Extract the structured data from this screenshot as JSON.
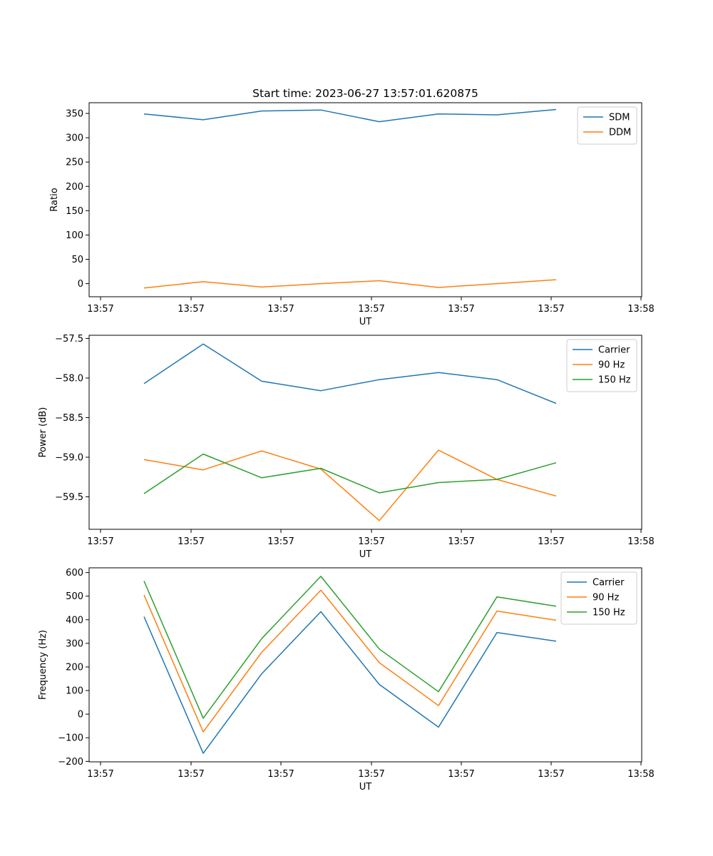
{
  "chart_data": [
    {
      "type": "line",
      "title": "Start time: 2023-06-27 13:57:01.620875",
      "xlabel": "UT",
      "ylabel": "Ratio",
      "x_tick_labels": [
        "13:57",
        "13:57",
        "13:57",
        "13:57",
        "13:57",
        "13:57",
        "13:58"
      ],
      "y_ticks": [
        0,
        50,
        100,
        150,
        200,
        250,
        300,
        350
      ],
      "ylim": [
        -27,
        372
      ],
      "legend_position": "top-right",
      "series": [
        {
          "name": "SDM",
          "color": "#1f77b4",
          "values": [
            349,
            337,
            355,
            357,
            333,
            349,
            347,
            358
          ]
        },
        {
          "name": "DDM",
          "color": "#ff7f0e",
          "values": [
            -9,
            4,
            -7,
            0,
            6,
            -8,
            0,
            8
          ]
        }
      ]
    },
    {
      "type": "line",
      "title": "",
      "xlabel": "UT",
      "ylabel": "Power (dB)",
      "x_tick_labels": [
        "13:57",
        "13:57",
        "13:57",
        "13:57",
        "13:57",
        "13:57",
        "13:58"
      ],
      "y_ticks": [
        -59.5,
        -59.0,
        -58.5,
        -58.0,
        -57.5
      ],
      "y_tick_labels": [
        "−59.5",
        "−59.0",
        "−58.5",
        "−58.0",
        "−57.5"
      ],
      "ylim": [
        -59.91,
        -57.46
      ],
      "legend_position": "top-right",
      "series": [
        {
          "name": "Carrier",
          "color": "#1f77b4",
          "values": [
            -58.07,
            -57.57,
            -58.04,
            -58.16,
            -58.02,
            -57.93,
            -58.02,
            -58.32
          ]
        },
        {
          "name": "90 Hz",
          "color": "#ff7f0e",
          "values": [
            -59.03,
            -59.16,
            -58.92,
            -59.15,
            -59.8,
            -58.91,
            -59.28,
            -59.49
          ]
        },
        {
          "name": "150 Hz",
          "color": "#2ca02c",
          "values": [
            -59.46,
            -58.96,
            -59.26,
            -59.14,
            -59.45,
            -59.32,
            -59.28,
            -59.07
          ]
        }
      ]
    },
    {
      "type": "line",
      "title": "",
      "xlabel": "UT",
      "ylabel": "Frequency (Hz)",
      "x_tick_labels": [
        "13:57",
        "13:57",
        "13:57",
        "13:57",
        "13:57",
        "13:57",
        "13:58"
      ],
      "y_ticks": [
        -200,
        -100,
        0,
        100,
        200,
        300,
        400,
        500,
        600
      ],
      "y_tick_labels": [
        "−200",
        "−100",
        "0",
        "100",
        "200",
        "300",
        "400",
        "500",
        "600"
      ],
      "ylim": [
        -202,
        620
      ],
      "legend_position": "top-right",
      "series": [
        {
          "name": "Carrier",
          "color": "#1f77b4",
          "values": [
            413,
            -166,
            171,
            434,
            126,
            -55,
            346,
            309
          ]
        },
        {
          "name": "90 Hz",
          "color": "#ff7f0e",
          "values": [
            505,
            -75,
            262,
            525,
            218,
            36,
            437,
            398
          ]
        },
        {
          "name": "150 Hz",
          "color": "#2ca02c",
          "values": [
            564,
            -17,
            320,
            584,
            276,
            95,
            497,
            457
          ]
        }
      ]
    }
  ]
}
